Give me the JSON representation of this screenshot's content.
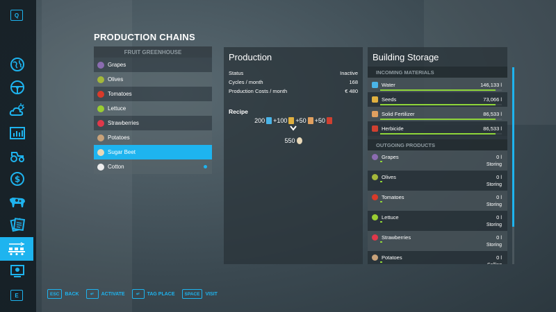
{
  "sidebar": {
    "key_prev": "Q",
    "key_next": "E",
    "icons": [
      "globe-icon",
      "steering-wheel-icon",
      "weather-icon",
      "statistics-icon",
      "tractor-icon",
      "money-icon",
      "cow-icon",
      "contracts-icon",
      "production-icon",
      "garage-icon"
    ]
  },
  "production_chains": {
    "title": "PRODUCTION CHAINS",
    "group_header": "FRUIT GREENHOUSE",
    "items": [
      {
        "label": "Grapes",
        "icon": "grapes-icon",
        "color": "#8b6cb0"
      },
      {
        "label": "Olives",
        "icon": "olives-icon",
        "color": "#a4b83a"
      },
      {
        "label": "Tomatoes",
        "icon": "tomato-icon",
        "color": "#d93a2a"
      },
      {
        "label": "Lettuce",
        "icon": "lettuce-icon",
        "color": "#9acd32"
      },
      {
        "label": "Strawberries",
        "icon": "strawberry-icon",
        "color": "#e0384a"
      },
      {
        "label": "Potatoes",
        "icon": "potato-icon",
        "color": "#c8a27a"
      },
      {
        "label": "Sugar Beet",
        "icon": "sugar-beet-icon",
        "color": "#e8d8b8"
      },
      {
        "label": "Cotton",
        "icon": "cotton-icon",
        "color": "#ececec"
      }
    ]
  },
  "production": {
    "title": "Production",
    "status_label": "Status",
    "status_value": "Inactive",
    "cycles_label": "Cycles / month",
    "cycles_value": "168",
    "costs_label": "Production Costs / month",
    "costs_value": "€ 480",
    "recipe_title": "Recipe",
    "recipe_inputs": [
      {
        "amount": "200",
        "icon": "water-icon",
        "color": "#4ab4e8"
      },
      {
        "amount": "+100",
        "icon": "seeds-icon",
        "color": "#e0b040"
      },
      {
        "amount": "+50",
        "icon": "fertilizer-icon",
        "color": "#e0a060"
      },
      {
        "amount": "+50",
        "icon": "herbicide-icon",
        "color": "#d04030"
      }
    ],
    "recipe_output": {
      "amount": "550",
      "icon": "sugar-beet-icon",
      "color": "#e8d8b8"
    }
  },
  "storage": {
    "title": "Building Storage",
    "incoming_header": "INCOMING MATERIALS",
    "incoming": [
      {
        "label": "Water",
        "amount": "146,133 l",
        "fill": 0.95,
        "icon": "water-icon",
        "color": "#4ab4e8"
      },
      {
        "label": "Seeds",
        "amount": "73,066 l",
        "fill": 0.95,
        "icon": "seeds-icon",
        "color": "#e0b040"
      },
      {
        "label": "Solid Fertilizer",
        "amount": "86,533 l",
        "fill": 0.95,
        "icon": "fertilizer-icon",
        "color": "#e0a060"
      },
      {
        "label": "Herbicide",
        "amount": "86,533 l",
        "fill": 0.95,
        "icon": "herbicide-icon",
        "color": "#d04030"
      }
    ],
    "outgoing_header": "OUTGOING PRODUCTS",
    "outgoing": [
      {
        "label": "Grapes",
        "amount": "0 l",
        "mode": "Storing",
        "icon": "grapes-icon",
        "color": "#8b6cb0"
      },
      {
        "label": "Olives",
        "amount": "0 l",
        "mode": "Storing",
        "icon": "olives-icon",
        "color": "#a4b83a"
      },
      {
        "label": "Tomatoes",
        "amount": "0 l",
        "mode": "Storing",
        "icon": "tomato-icon",
        "color": "#d93a2a"
      },
      {
        "label": "Lettuce",
        "amount": "0 l",
        "mode": "Storing",
        "icon": "lettuce-icon",
        "color": "#9acd32"
      },
      {
        "label": "Strawberries",
        "amount": "0 l",
        "mode": "Storing",
        "icon": "strawberry-icon",
        "color": "#e0384a"
      },
      {
        "label": "Potatoes",
        "amount": "0 l",
        "mode": "Selling",
        "icon": "potato-icon",
        "color": "#c8a27a"
      }
    ]
  },
  "hints": [
    {
      "key": "ESC",
      "label": "BACK"
    },
    {
      "key": "↵",
      "label": "ACTIVATE"
    },
    {
      "key": "↵",
      "label": "TAG PLACE"
    },
    {
      "key": "SPACE",
      "label": "VISIT"
    }
  ],
  "colors": {
    "accent": "#1eb4ef",
    "bar": "#8fd63a"
  }
}
